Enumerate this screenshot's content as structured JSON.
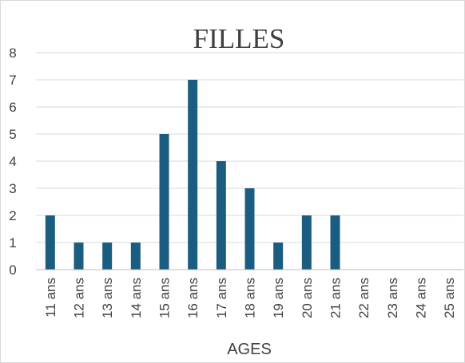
{
  "chart_data": {
    "type": "bar",
    "title": "FILLES",
    "xlabel": "AGES",
    "ylabel": "",
    "ylim": [
      0,
      8
    ],
    "yticks": [
      0,
      1,
      2,
      3,
      4,
      5,
      6,
      7,
      8
    ],
    "categories": [
      "11 ans",
      "12 ans",
      "13 ans",
      "14 ans",
      "15 ans",
      "16 ans",
      "17 ans",
      "18 ans",
      "19 ans",
      "20 ans",
      "21 ans",
      "22 ans",
      "23 ans",
      "24 ans",
      "25 ans"
    ],
    "values": [
      2,
      1,
      1,
      1,
      5,
      7,
      4,
      3,
      1,
      2,
      2,
      0,
      0,
      0,
      0
    ],
    "bar_color": "#1b5d80",
    "grid": true,
    "legend": "none"
  }
}
